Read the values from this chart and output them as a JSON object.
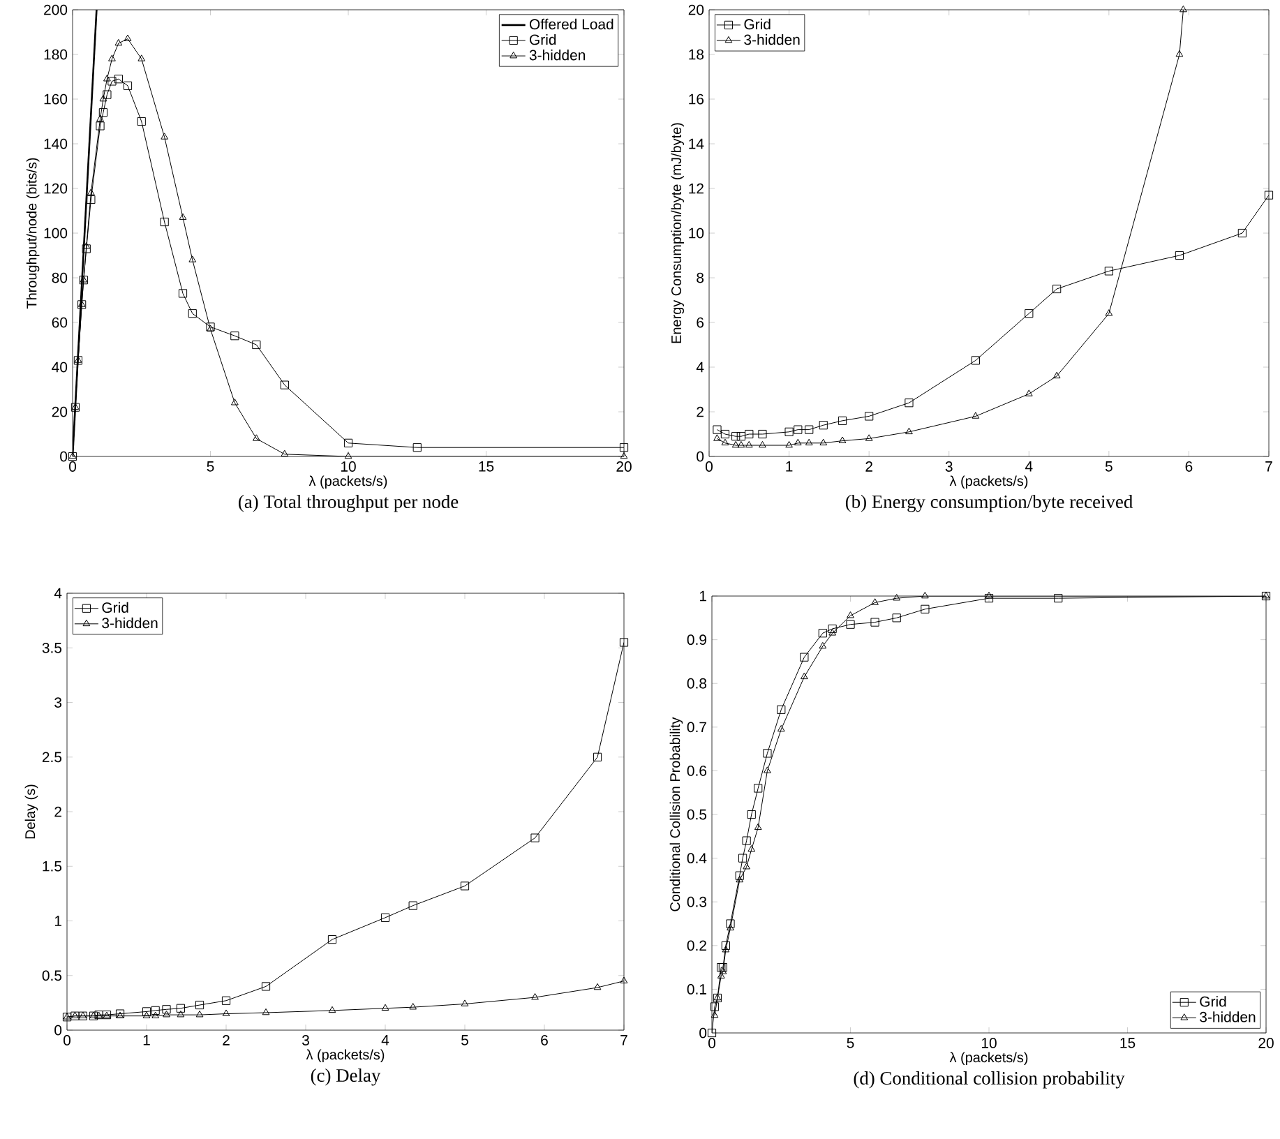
{
  "chart_data": [
    {
      "type": "line",
      "title": "(a)  Total throughput per node",
      "xlabel": "λ (packets/s)",
      "ylabel": "Throughput/node (bits/s)",
      "xlim": [
        0,
        20
      ],
      "ylim": [
        0,
        200
      ],
      "xticks": [
        0,
        5,
        10,
        15,
        20
      ],
      "yticks": [
        0,
        20,
        40,
        60,
        80,
        100,
        120,
        140,
        160,
        180,
        200
      ],
      "grid": false,
      "legend": "top right",
      "series": [
        {
          "name": "Offered Load",
          "color": "#000000",
          "x": [
            0,
            0.87
          ],
          "values": [
            0,
            200
          ]
        },
        {
          "name": "Grid",
          "color": "#000000",
          "marker": "square",
          "x": [
            0,
            0.1,
            0.2,
            0.333,
            0.4,
            0.5,
            0.667,
            1,
            1.111,
            1.25,
            1.429,
            1.667,
            2,
            2.5,
            3.333,
            4,
            4.348,
            5,
            5.882,
            6.667,
            7.692,
            10,
            12.5,
            20
          ],
          "values": [
            0,
            22,
            43,
            68,
            79,
            93,
            115,
            148,
            154,
            162,
            168,
            169,
            166,
            150,
            105,
            73,
            64,
            58,
            54,
            50,
            32,
            6,
            4,
            4
          ]
        },
        {
          "name": "3-hidden",
          "color": "#000000",
          "marker": "triangle",
          "x": [
            0,
            0.1,
            0.2,
            0.333,
            0.4,
            0.5,
            0.667,
            1,
            1.111,
            1.25,
            1.429,
            1.667,
            2,
            2.5,
            3.333,
            4,
            4.348,
            5,
            5.882,
            6.667,
            7.692,
            10,
            20
          ],
          "values": [
            0,
            22,
            43,
            68,
            79,
            94,
            118,
            151,
            160,
            169,
            178,
            185,
            187,
            178,
            143,
            107,
            88,
            57,
            24,
            8,
            1,
            0,
            0
          ]
        }
      ]
    },
    {
      "type": "line",
      "title": "(b)  Energy consumption/byte received",
      "xlabel": "λ (packets/s)",
      "ylabel": "Energy Consumption/byte (mJ/byte)",
      "xlim": [
        0,
        7
      ],
      "ylim": [
        0,
        20
      ],
      "xticks": [
        0,
        1,
        2,
        3,
        4,
        5,
        6,
        7
      ],
      "yticks": [
        0,
        2,
        4,
        6,
        8,
        10,
        12,
        14,
        16,
        18,
        20
      ],
      "grid": false,
      "legend": "top left",
      "series": [
        {
          "name": "Grid",
          "color": "#000000",
          "marker": "square",
          "x": [
            0.1,
            0.2,
            0.333,
            0.4,
            0.5,
            0.667,
            1,
            1.111,
            1.25,
            1.429,
            1.667,
            2,
            2.5,
            3.333,
            4,
            4.348,
            5,
            5.882,
            6.667,
            7
          ],
          "values": [
            1.2,
            1.0,
            0.9,
            0.9,
            1.0,
            1.0,
            1.1,
            1.2,
            1.2,
            1.4,
            1.6,
            1.8,
            2.4,
            4.3,
            6.4,
            7.5,
            8.3,
            9.0,
            10.0,
            11.7
          ]
        },
        {
          "name": "3-hidden",
          "color": "#000000",
          "marker": "triangle",
          "x": [
            0.1,
            0.2,
            0.333,
            0.4,
            0.5,
            0.667,
            1,
            1.111,
            1.25,
            1.429,
            1.667,
            2,
            2.5,
            3.333,
            4,
            4.348,
            5,
            5.882,
            5.93
          ],
          "values": [
            0.8,
            0.6,
            0.5,
            0.5,
            0.5,
            0.5,
            0.5,
            0.6,
            0.6,
            0.6,
            0.7,
            0.8,
            1.1,
            1.8,
            2.8,
            3.6,
            6.4,
            18.0,
            20
          ]
        }
      ]
    },
    {
      "type": "line",
      "title": "(c)  Delay",
      "xlabel": "λ (packets/s)",
      "ylabel": "Delay (s)",
      "xlim": [
        0,
        7
      ],
      "ylim": [
        0,
        4
      ],
      "xticks": [
        0,
        1,
        2,
        3,
        4,
        5,
        6,
        7
      ],
      "yticks": [
        0,
        0.5,
        1,
        1.5,
        2,
        2.5,
        3,
        3.5,
        4
      ],
      "grid": false,
      "legend": "top left",
      "series": [
        {
          "name": "Grid",
          "color": "#000000",
          "marker": "square",
          "x": [
            0,
            0.1,
            0.2,
            0.333,
            0.4,
            0.5,
            0.667,
            1,
            1.111,
            1.25,
            1.429,
            1.667,
            2,
            2.5,
            3.333,
            4,
            4.348,
            5,
            5.882,
            6.667,
            7
          ],
          "values": [
            0.12,
            0.13,
            0.13,
            0.13,
            0.14,
            0.14,
            0.15,
            0.17,
            0.18,
            0.19,
            0.2,
            0.23,
            0.27,
            0.4,
            0.83,
            1.03,
            1.14,
            1.32,
            1.76,
            2.5,
            3.55
          ]
        },
        {
          "name": "3-hidden",
          "color": "#000000",
          "marker": "triangle",
          "x": [
            0,
            0.1,
            0.2,
            0.333,
            0.4,
            0.5,
            0.667,
            1,
            1.111,
            1.25,
            1.429,
            1.667,
            2,
            2.5,
            3.333,
            4,
            4.348,
            5,
            5.882,
            6.667,
            7
          ],
          "values": [
            0.12,
            0.13,
            0.13,
            0.13,
            0.13,
            0.13,
            0.13,
            0.13,
            0.13,
            0.14,
            0.14,
            0.14,
            0.15,
            0.16,
            0.18,
            0.2,
            0.21,
            0.24,
            0.3,
            0.39,
            0.45
          ]
        }
      ]
    },
    {
      "type": "line",
      "title": "(d)  Conditional collision probability",
      "xlabel": "λ (packets/s)",
      "ylabel": "Conditional Collision Probability",
      "xlim": [
        0,
        20
      ],
      "ylim": [
        0,
        1
      ],
      "xticks": [
        0,
        5,
        10,
        15,
        20
      ],
      "yticks": [
        0,
        0.1,
        0.2,
        0.3,
        0.4,
        0.5,
        0.6,
        0.7,
        0.8,
        0.9,
        1
      ],
      "grid": false,
      "legend": "bottom right",
      "series": [
        {
          "name": "Grid",
          "color": "#000000",
          "marker": "square",
          "x": [
            0,
            0.1,
            0.2,
            0.333,
            0.4,
            0.5,
            0.667,
            1,
            1.111,
            1.25,
            1.429,
            1.667,
            2,
            2.5,
            3.333,
            4,
            4.348,
            5,
            5.882,
            6.667,
            7.692,
            10,
            12.5,
            20
          ],
          "values": [
            0,
            0.06,
            0.08,
            0.15,
            0.15,
            0.2,
            0.25,
            0.36,
            0.4,
            0.44,
            0.5,
            0.56,
            0.64,
            0.74,
            0.86,
            0.915,
            0.925,
            0.935,
            0.94,
            0.95,
            0.97,
            0.995,
            0.995,
            1
          ]
        },
        {
          "name": "3-hidden",
          "color": "#000000",
          "marker": "triangle",
          "x": [
            0.1,
            0.2,
            0.333,
            0.4,
            0.5,
            0.667,
            1,
            1.25,
            1.429,
            1.667,
            2,
            2.5,
            3.333,
            4,
            4.348,
            5,
            5.882,
            6.667,
            7.692,
            10,
            20
          ],
          "values": [
            0.04,
            0.08,
            0.13,
            0.14,
            0.19,
            0.24,
            0.35,
            0.38,
            0.42,
            0.47,
            0.6,
            0.695,
            0.815,
            0.885,
            0.915,
            0.955,
            0.985,
            0.995,
            1,
            1,
            1
          ]
        }
      ]
    }
  ]
}
